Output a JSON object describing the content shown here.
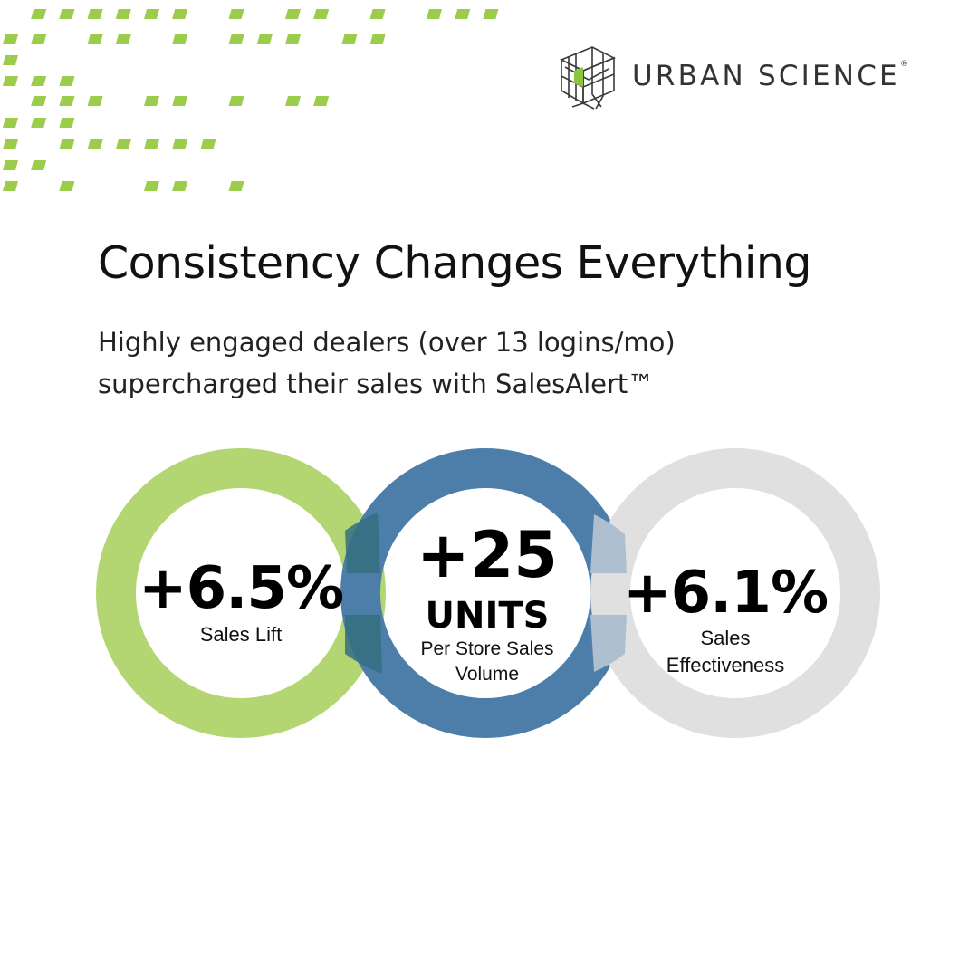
{
  "brand": {
    "name": "URBAN SCIENCE",
    "trademark": "®",
    "accent_color": "#9ccc4c",
    "logo_icon": "cube-frame-icon"
  },
  "headline": "Consistency Changes Everything",
  "subheadline": {
    "line1": "Highly engaged dealers (over 13 logins/mo)",
    "line2": "supercharged their sales with SalesAlert™"
  },
  "stats": [
    {
      "value": "+6.5%",
      "label": "Sales Lift",
      "ring_color": "#b3d672"
    },
    {
      "value_prefix": "+25",
      "value_unit": "UNITS",
      "label_line1": "Per Store Sales",
      "label_line2": "Volume",
      "ring_color": "#4d7ea9"
    },
    {
      "value": "+6.1%",
      "label_line1": "Sales",
      "label_line2": "Effectiveness",
      "ring_color": "#e0e0e0"
    }
  ]
}
